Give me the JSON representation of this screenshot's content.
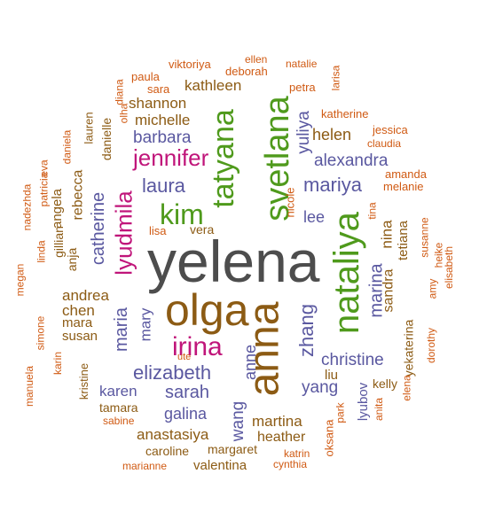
{
  "colors": {
    "gray": "#4d4d4d",
    "brown": "#8c5b14",
    "green": "#4f9a1c",
    "magenta": "#c0157a",
    "purple": "#5a58a0",
    "teal": "#1b8a6b",
    "orange": "#d05a13"
  },
  "words": [
    {
      "text": "yelena",
      "color": "gray"
    },
    {
      "text": "olga",
      "color": "brown"
    },
    {
      "text": "anna",
      "color": "brown"
    },
    {
      "text": "nataliya",
      "color": "green"
    },
    {
      "text": "svetlana",
      "color": "green"
    },
    {
      "text": "tatyana",
      "color": "green"
    },
    {
      "text": "kim",
      "color": "green"
    },
    {
      "text": "jennifer",
      "color": "magenta"
    },
    {
      "text": "irina",
      "color": "magenta"
    },
    {
      "text": "lyudmila",
      "color": "magenta"
    },
    {
      "text": "elizabeth",
      "color": "purple"
    },
    {
      "text": "mariya",
      "color": "purple"
    },
    {
      "text": "laura",
      "color": "purple"
    },
    {
      "text": "barbara",
      "color": "purple"
    },
    {
      "text": "alexandra",
      "color": "purple"
    },
    {
      "text": "catherine",
      "color": "purple"
    },
    {
      "text": "marina",
      "color": "purple"
    },
    {
      "text": "maria",
      "color": "purple"
    },
    {
      "text": "zhang",
      "color": "purple"
    },
    {
      "text": "christine",
      "color": "purple"
    },
    {
      "text": "sarah",
      "color": "purple"
    },
    {
      "text": "yang",
      "color": "purple"
    },
    {
      "text": "yuliya",
      "color": "purple"
    },
    {
      "text": "galina",
      "color": "purple"
    },
    {
      "text": "mary",
      "color": "purple"
    },
    {
      "text": "anne",
      "color": "purple"
    },
    {
      "text": "wang",
      "color": "purple"
    },
    {
      "text": "lee",
      "color": "purple"
    },
    {
      "text": "karen",
      "color": "purple"
    },
    {
      "text": "lyubov",
      "color": "purple"
    },
    {
      "text": "helen",
      "color": "brown"
    },
    {
      "text": "michelle",
      "color": "brown"
    },
    {
      "text": "shannon",
      "color": "brown"
    },
    {
      "text": "kathleen",
      "color": "brown"
    },
    {
      "text": "andrea",
      "color": "brown"
    },
    {
      "text": "chen",
      "color": "brown"
    },
    {
      "text": "mara",
      "color": "brown"
    },
    {
      "text": "susan",
      "color": "brown"
    },
    {
      "text": "martina",
      "color": "brown"
    },
    {
      "text": "heather",
      "color": "brown"
    },
    {
      "text": "anastasiya",
      "color": "brown"
    },
    {
      "text": "nina",
      "color": "brown"
    },
    {
      "text": "sandra",
      "color": "brown"
    },
    {
      "text": "rebecca",
      "color": "brown"
    },
    {
      "text": "angela",
      "color": "brown"
    },
    {
      "text": "liu",
      "color": "brown"
    },
    {
      "text": "kelly",
      "color": "brown"
    },
    {
      "text": "valentina",
      "color": "brown"
    },
    {
      "text": "caroline",
      "color": "brown"
    },
    {
      "text": "margaret",
      "color": "brown"
    },
    {
      "text": "tamara",
      "color": "brown"
    },
    {
      "text": "vera",
      "color": "brown"
    },
    {
      "text": "danielle",
      "color": "brown"
    },
    {
      "text": "lauren",
      "color": "brown"
    },
    {
      "text": "gillian",
      "color": "brown"
    },
    {
      "text": "anja",
      "color": "brown"
    },
    {
      "text": "kristine",
      "color": "brown"
    },
    {
      "text": "tetiana",
      "color": "brown"
    },
    {
      "text": "yekaterina",
      "color": "brown"
    },
    {
      "text": "nicole",
      "color": "orange"
    },
    {
      "text": "natalie",
      "color": "orange"
    },
    {
      "text": "ellen",
      "color": "orange"
    },
    {
      "text": "deborah",
      "color": "orange"
    },
    {
      "text": "viktoriya",
      "color": "orange"
    },
    {
      "text": "paula",
      "color": "orange"
    },
    {
      "text": "sara",
      "color": "orange"
    },
    {
      "text": "diana",
      "color": "orange"
    },
    {
      "text": "olha",
      "color": "orange"
    },
    {
      "text": "petra",
      "color": "orange"
    },
    {
      "text": "larisa",
      "color": "orange"
    },
    {
      "text": "katherine",
      "color": "orange"
    },
    {
      "text": "jessica",
      "color": "orange"
    },
    {
      "text": "claudia",
      "color": "orange"
    },
    {
      "text": "amanda",
      "color": "orange"
    },
    {
      "text": "melanie",
      "color": "orange"
    },
    {
      "text": "tina",
      "color": "orange"
    },
    {
      "text": "susanne",
      "color": "orange"
    },
    {
      "text": "heike",
      "color": "orange"
    },
    {
      "text": "elisabeth",
      "color": "orange"
    },
    {
      "text": "amy",
      "color": "orange"
    },
    {
      "text": "dorothy",
      "color": "orange"
    },
    {
      "text": "elena",
      "color": "orange"
    },
    {
      "text": "anita",
      "color": "orange"
    },
    {
      "text": "park",
      "color": "orange"
    },
    {
      "text": "oksana",
      "color": "orange"
    },
    {
      "text": "katrin",
      "color": "orange"
    },
    {
      "text": "cynthia",
      "color": "orange"
    },
    {
      "text": "marianne",
      "color": "orange"
    },
    {
      "text": "sabine",
      "color": "orange"
    },
    {
      "text": "ute",
      "color": "orange"
    },
    {
      "text": "lisa",
      "color": "orange"
    },
    {
      "text": "daniela",
      "color": "orange"
    },
    {
      "text": "nadezhda",
      "color": "orange"
    },
    {
      "text": "patricia",
      "color": "orange"
    },
    {
      "text": "eva",
      "color": "orange"
    },
    {
      "text": "linda",
      "color": "orange"
    },
    {
      "text": "megan",
      "color": "orange"
    },
    {
      "text": "simone",
      "color": "orange"
    },
    {
      "text": "manuela",
      "color": "orange"
    },
    {
      "text": "karin",
      "color": "orange"
    }
  ]
}
